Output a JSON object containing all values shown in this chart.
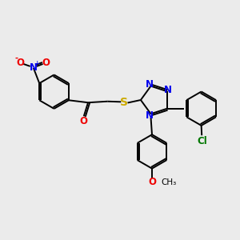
{
  "bg_color": "#ebebeb",
  "bond_color": "#000000",
  "line_width": 1.4,
  "font_size_atom": 8.5,
  "font_size_small": 7.5,
  "colors": {
    "N": "#0000ee",
    "O": "#ee0000",
    "S": "#ccaa00",
    "Cl": "#007700",
    "C": "#000000"
  },
  "xlim": [
    0,
    10
  ],
  "ylim": [
    0,
    10
  ]
}
